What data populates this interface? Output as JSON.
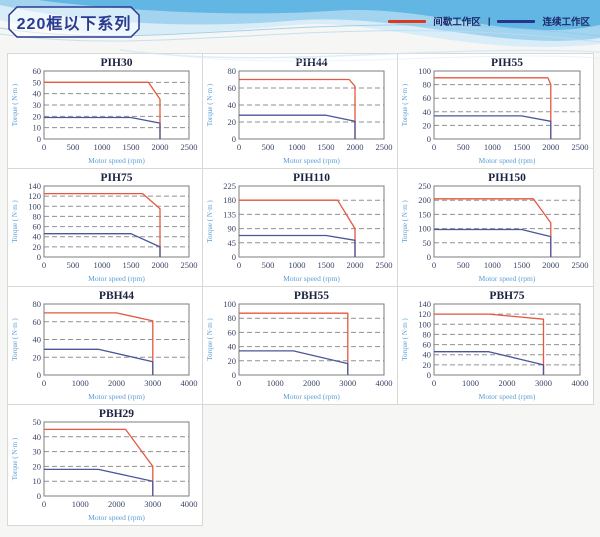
{
  "header": {
    "title": "220框以下系列",
    "legend": [
      {
        "label": "间歇工作区",
        "color": "#d93a20"
      },
      {
        "label": "连续工作区",
        "color": "#27348b"
      }
    ],
    "legend_separator": "|"
  },
  "colors": {
    "red_line": "#e5573f",
    "blue_line": "#4a5699",
    "grid_line": "#919191",
    "plot_border": "#7d7d7d",
    "tick_text": "#3d4668",
    "title_text": "#1c2340",
    "axis_label": "#5b9ed6"
  },
  "axis": {
    "x_label": "Motor speed (rpm)",
    "y_label": "Torque ( N·m )"
  },
  "chart_data": [
    {
      "type": "line",
      "title": "PIH30",
      "xlabel": "Motor speed (rpm)",
      "ylabel": "Torque ( N·m )",
      "xlim": [
        0,
        2500
      ],
      "ylim": [
        0,
        60
      ],
      "xticks": [
        0,
        500,
        1000,
        1500,
        2000,
        2500
      ],
      "yticks": [
        0,
        10,
        20,
        30,
        40,
        50,
        60
      ],
      "series": [
        {
          "name": "间歇工作区",
          "color_key": "red_line",
          "points": [
            [
              0,
              50
            ],
            [
              1800,
              50
            ],
            [
              2000,
              35
            ],
            [
              2000,
              0
            ]
          ]
        },
        {
          "name": "连续工作区",
          "color_key": "blue_line",
          "points": [
            [
              0,
              19
            ],
            [
              1500,
              19
            ],
            [
              2000,
              14
            ],
            [
              2000,
              0
            ]
          ]
        }
      ]
    },
    {
      "type": "line",
      "title": "PIH44",
      "xlabel": "Motor speed (rpm)",
      "ylabel": "Torque ( N·m )",
      "xlim": [
        0,
        2500
      ],
      "ylim": [
        0,
        80
      ],
      "xticks": [
        0,
        500,
        1000,
        1500,
        2000,
        2500
      ],
      "yticks": [
        0,
        20,
        40,
        60,
        80
      ],
      "series": [
        {
          "name": "间歇工作区",
          "color_key": "red_line",
          "points": [
            [
              0,
              70
            ],
            [
              1900,
              70
            ],
            [
              2000,
              62
            ],
            [
              2000,
              0
            ]
          ]
        },
        {
          "name": "连续工作区",
          "color_key": "blue_line",
          "points": [
            [
              0,
              28
            ],
            [
              1500,
              28
            ],
            [
              2000,
              21
            ],
            [
              2000,
              0
            ]
          ]
        }
      ]
    },
    {
      "type": "line",
      "title": "PIH55",
      "xlabel": "Motor speed (rpm)",
      "ylabel": "Torque ( N·m )",
      "xlim": [
        0,
        2500
      ],
      "ylim": [
        0,
        100
      ],
      "xticks": [
        0,
        500,
        1000,
        1500,
        2000,
        2500
      ],
      "yticks": [
        0,
        20,
        40,
        60,
        80,
        100
      ],
      "series": [
        {
          "name": "间歇工作区",
          "color_key": "red_line",
          "points": [
            [
              0,
              90
            ],
            [
              1950,
              90
            ],
            [
              2000,
              80
            ],
            [
              2000,
              0
            ]
          ]
        },
        {
          "name": "连续工作区",
          "color_key": "blue_line",
          "points": [
            [
              0,
              34
            ],
            [
              1500,
              34
            ],
            [
              2000,
              26
            ],
            [
              2000,
              0
            ]
          ]
        }
      ]
    },
    {
      "type": "line",
      "title": "PIH75",
      "xlabel": "Motor speed (rpm)",
      "ylabel": "Torque ( N·m )",
      "xlim": [
        0,
        2500
      ],
      "ylim": [
        0,
        140
      ],
      "xticks": [
        0,
        500,
        1000,
        1500,
        2000,
        2500
      ],
      "yticks": [
        0,
        20,
        40,
        60,
        80,
        100,
        120,
        140
      ],
      "series": [
        {
          "name": "间歇工作区",
          "color_key": "red_line",
          "points": [
            [
              0,
              125
            ],
            [
              1700,
              125
            ],
            [
              2000,
              95
            ],
            [
              2000,
              0
            ]
          ]
        },
        {
          "name": "连续工作区",
          "color_key": "blue_line",
          "points": [
            [
              0,
              46
            ],
            [
              1500,
              46
            ],
            [
              2000,
              20
            ],
            [
              2000,
              0
            ]
          ]
        }
      ]
    },
    {
      "type": "line",
      "title": "PIH110",
      "xlabel": "Motor speed (rpm)",
      "ylabel": "Torque ( N·m )",
      "xlim": [
        0,
        2500
      ],
      "ylim": [
        0,
        225
      ],
      "xticks": [
        0,
        500,
        1000,
        1500,
        2000,
        2500
      ],
      "yticks": [
        0,
        45,
        90,
        135,
        180,
        225
      ],
      "series": [
        {
          "name": "间歇工作区",
          "color_key": "red_line",
          "points": [
            [
              0,
              180
            ],
            [
              1700,
              180
            ],
            [
              2000,
              90
            ],
            [
              2000,
              0
            ]
          ]
        },
        {
          "name": "连续工作区",
          "color_key": "blue_line",
          "points": [
            [
              0,
              68
            ],
            [
              1500,
              68
            ],
            [
              2000,
              53
            ],
            [
              2000,
              0
            ]
          ]
        }
      ]
    },
    {
      "type": "line",
      "title": "PIH150",
      "xlabel": "Motor speed (rpm)",
      "ylabel": "Torque ( N·m )",
      "xlim": [
        0,
        2500
      ],
      "ylim": [
        0,
        250
      ],
      "xticks": [
        0,
        500,
        1000,
        1500,
        2000,
        2500
      ],
      "yticks": [
        0,
        50,
        100,
        150,
        200,
        250
      ],
      "series": [
        {
          "name": "间歇工作区",
          "color_key": "red_line",
          "points": [
            [
              0,
              205
            ],
            [
              1700,
              205
            ],
            [
              2000,
              120
            ],
            [
              2000,
              0
            ]
          ]
        },
        {
          "name": "连续工作区",
          "color_key": "blue_line",
          "points": [
            [
              0,
              97
            ],
            [
              1500,
              97
            ],
            [
              2000,
              72
            ],
            [
              2000,
              0
            ]
          ]
        }
      ]
    },
    {
      "type": "line",
      "title": "PBH44",
      "xlabel": "Motor speed (rpm)",
      "ylabel": "Torque ( N·m )",
      "xlim": [
        0,
        4000
      ],
      "ylim": [
        0,
        80
      ],
      "xticks": [
        0,
        1000,
        2000,
        3000,
        4000
      ],
      "yticks": [
        0,
        20,
        40,
        60,
        80
      ],
      "series": [
        {
          "name": "间歇工作区",
          "color_key": "red_line",
          "points": [
            [
              0,
              70
            ],
            [
              2000,
              70
            ],
            [
              3000,
              61
            ],
            [
              3000,
              0
            ]
          ]
        },
        {
          "name": "连续工作区",
          "color_key": "blue_line",
          "points": [
            [
              0,
              29
            ],
            [
              1500,
              29
            ],
            [
              3000,
              15
            ],
            [
              3000,
              0
            ]
          ]
        }
      ]
    },
    {
      "type": "line",
      "title": "PBH55",
      "xlabel": "Motor speed (rpm)",
      "ylabel": "Torque ( N·m )",
      "xlim": [
        0,
        4000
      ],
      "ylim": [
        0,
        100
      ],
      "xticks": [
        0,
        1000,
        2000,
        3000,
        4000
      ],
      "yticks": [
        0,
        20,
        40,
        60,
        80,
        100
      ],
      "series": [
        {
          "name": "间歇工作区",
          "color_key": "red_line",
          "points": [
            [
              0,
              87
            ],
            [
              3000,
              87
            ],
            [
              3000,
              0
            ]
          ]
        },
        {
          "name": "连续工作区",
          "color_key": "blue_line",
          "points": [
            [
              0,
              34
            ],
            [
              1500,
              34
            ],
            [
              3000,
              16
            ],
            [
              3000,
              0
            ]
          ]
        }
      ]
    },
    {
      "type": "line",
      "title": "PBH75",
      "xlabel": "Motor speed (rpm)",
      "ylabel": "Torque ( N·m )",
      "xlim": [
        0,
        4000
      ],
      "ylim": [
        0,
        140
      ],
      "xticks": [
        0,
        1000,
        2000,
        3000,
        4000
      ],
      "yticks": [
        0,
        20,
        40,
        60,
        80,
        100,
        120,
        140
      ],
      "series": [
        {
          "name": "间歇工作区",
          "color_key": "red_line",
          "points": [
            [
              0,
              120
            ],
            [
              1500,
              120
            ],
            [
              3000,
              110
            ],
            [
              3000,
              0
            ]
          ]
        },
        {
          "name": "连续工作区",
          "color_key": "blue_line",
          "points": [
            [
              0,
              46
            ],
            [
              1500,
              46
            ],
            [
              3000,
              20
            ],
            [
              3000,
              0
            ]
          ]
        }
      ]
    },
    {
      "type": "line",
      "title": "PBH29",
      "xlabel": "Motor speed (rpm)",
      "ylabel": "Torque ( N·m )",
      "xlim": [
        0,
        4000
      ],
      "ylim": [
        0,
        50
      ],
      "xticks": [
        0,
        1000,
        2000,
        3000,
        4000
      ],
      "yticks": [
        0,
        10,
        20,
        30,
        40,
        50
      ],
      "series": [
        {
          "name": "间歇工作区",
          "color_key": "red_line",
          "points": [
            [
              0,
              45
            ],
            [
              2250,
              45
            ],
            [
              3000,
              20
            ],
            [
              3000,
              0
            ]
          ]
        },
        {
          "name": "连续工作区",
          "color_key": "blue_line",
          "points": [
            [
              0,
              18
            ],
            [
              1500,
              18
            ],
            [
              3000,
              10
            ],
            [
              3000,
              0
            ]
          ]
        }
      ]
    }
  ]
}
